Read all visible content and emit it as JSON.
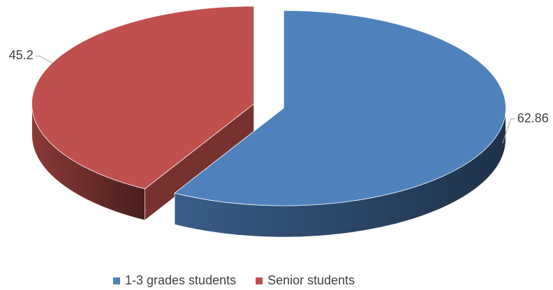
{
  "chart_data": {
    "type": "pie",
    "categories": [
      "1-3 grades students",
      "Senior students"
    ],
    "values": [
      62.86,
      45.2
    ],
    "colors": [
      "#4f81bd",
      "#c0504d"
    ],
    "legend": "bottom"
  }
}
